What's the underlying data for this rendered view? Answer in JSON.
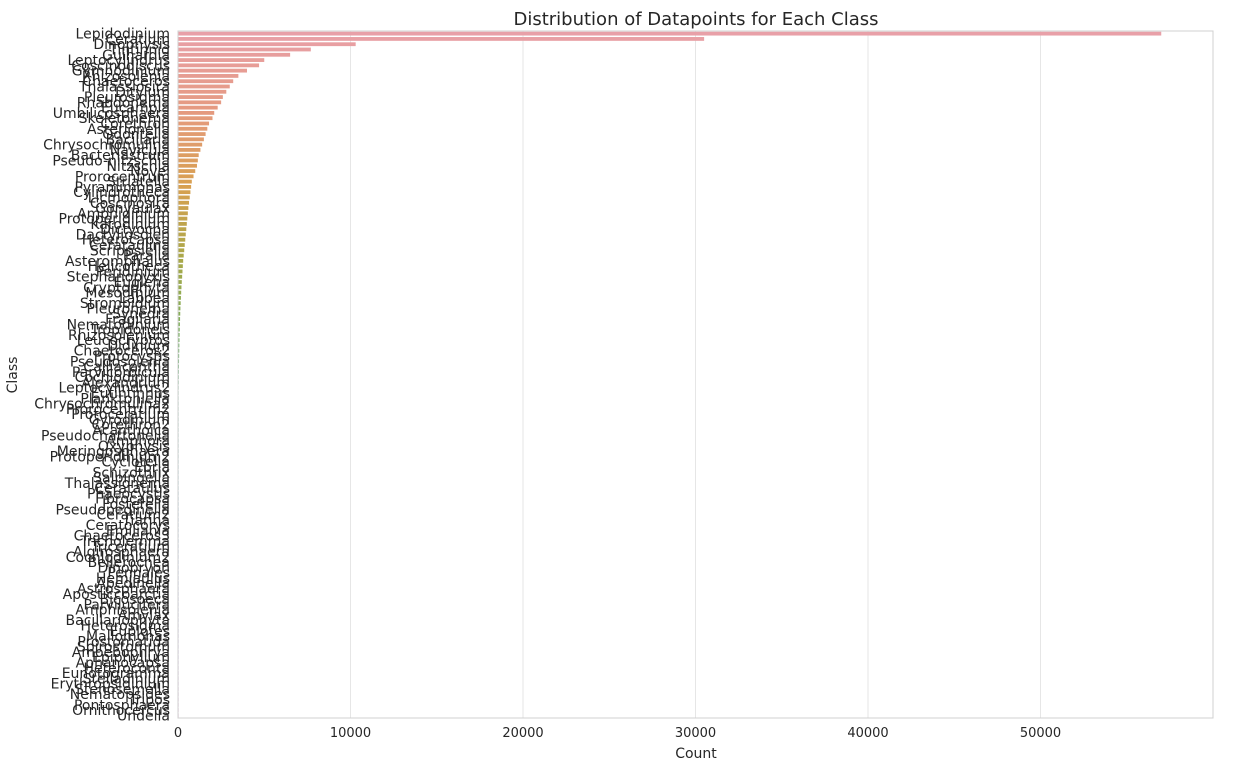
{
  "chart_data": {
    "type": "bar",
    "orientation": "horizontal",
    "title": "Distribution of Datapoints for Each Class",
    "xlabel": "Count",
    "ylabel": "Class",
    "xlim": [
      0,
      60000
    ],
    "x_ticks": [
      0,
      10000,
      20000,
      30000,
      40000,
      50000
    ],
    "x_tick_labels": [
      "0",
      "10000",
      "20000",
      "30000",
      "40000",
      "50000"
    ],
    "grid": "vertical",
    "categories": [
      "Lepidodinium",
      "Ceratium",
      "Dinophysis",
      "Tintinnid",
      "Guinardia",
      "Leptocylindrus",
      "Coscinodiscus",
      "Gymnodinium",
      "Rhizosolenia",
      "Chaetoceros",
      "Thalassiosira",
      "Ditylum",
      "Pleurosigma",
      "Rhabdonema",
      "Eucampia",
      "Umbilicosphaera",
      "Skeletonema",
      "Corethron",
      "Asterionella",
      "Odontella",
      "Bacillaria",
      "Chrysochromulina",
      "Navicula",
      "Bacteriastrum",
      "Pseudo-nitzschia",
      "Nitzschia",
      "Novel",
      "Prorocentrum",
      "Striatella",
      "Pyramimonas",
      "Cylindrotheca",
      "Licmophora",
      "Coscinosira",
      "Gonyaulax",
      "Amphidinium",
      "Protoperidinium",
      "Katodinium",
      "Dictyocha",
      "Dactyliosolen",
      "Heterocapsa",
      "Cerataulina",
      "Scrippsiella",
      "Paralia",
      "Asteromphalus",
      "Helicotheca",
      "Peridinium",
      "Stephanopyxis",
      "Euglena",
      "Cryptophyta",
      "Mesodinium",
      "Laboea",
      "Strombidium",
      "Pleuronema",
      "Synedra",
      "Fragilaria",
      "Nematodinium",
      "Tropidoneis",
      "Rhizosolenium",
      "Leucocryptos",
      "Didinium",
      "Chaetoceros2",
      "Protocystis",
      "Pseudosolenia",
      "Calliacantha",
      "Parvicorbicula",
      "Cochlodinium",
      "Alexandrium",
      "Leptocylindrus2",
      "Eutintinnus",
      "Planktoniella",
      "Chrysochromulina2",
      "Prorocentrum2",
      "Protoceratium",
      "Gyrodinium",
      "Corethron2",
      "Acanthoica",
      "Pseudochattonella",
      "Amphora",
      "Oxyphysis",
      "Meringosphaera",
      "Protoperidinium2",
      "Cyclotella",
      "Ebria",
      "Schizothrix",
      "Salpingella",
      "Thalassionema",
      "Cerataulus",
      "Phaeocystis",
      "Fibrocapsa",
      "Fosterella",
      "Pseudopedinella",
      "Ceratium2",
      "Tiarina",
      "Ceratocorys",
      "Emiliania",
      "Chaetoceros3",
      "Tricholemma",
      "Triceratium",
      "Algirosphaera",
      "Cochlodinium2",
      "Bellerochea",
      "Dinobryon",
      "Pennales",
      "Hemiaulus",
      "Apedinella",
      "Astrosphaera",
      "Aposticcoarctia",
      "Bicosoeca",
      "Parvilucifera",
      "Amphisolenia",
      "Amylax",
      "Bacillariophyta",
      "Heterosigma",
      "Euplotes",
      "Mallomonas",
      "Prostomatida",
      "Spirostomum",
      "Amoebophrya",
      "Epiphyllum",
      "Aphanocapsa",
      "Heteroconta",
      "Eunotogramma",
      "Stelladinium",
      "Erythropsidinium",
      "Stenosemella",
      "Nematopsides",
      "Tripos",
      "Pontosphaera",
      "Ornithocercus",
      "Undella"
    ],
    "values": [
      57000,
      30500,
      10300,
      7700,
      6500,
      5000,
      4700,
      4000,
      3500,
      3200,
      3000,
      2800,
      2600,
      2500,
      2300,
      2100,
      2000,
      1800,
      1700,
      1600,
      1500,
      1400,
      1300,
      1200,
      1150,
      1100,
      1000,
      900,
      800,
      760,
      720,
      680,
      640,
      600,
      570,
      540,
      510,
      480,
      450,
      420,
      390,
      360,
      330,
      300,
      280,
      260,
      240,
      220,
      200,
      185,
      170,
      155,
      140,
      130,
      120,
      110,
      100,
      92,
      85,
      78,
      72,
      66,
      60,
      55,
      50,
      46,
      42,
      38,
      35,
      32,
      30,
      28,
      26,
      24,
      22,
      20,
      19,
      18,
      17,
      16,
      15,
      14,
      13,
      12,
      11,
      10,
      10,
      9,
      9,
      8,
      8,
      7,
      7,
      6,
      6,
      6,
      5,
      5,
      5,
      4,
      4,
      4,
      4,
      3,
      3,
      3,
      3,
      3,
      2,
      2,
      2,
      2,
      2,
      2,
      2,
      2,
      1,
      1,
      1,
      1,
      1,
      1,
      1,
      1,
      1,
      1,
      1,
      1,
      1,
      1
    ],
    "palette_stops": [
      "#e8a0a8",
      "#e59a80",
      "#d8a050",
      "#a8a848",
      "#78b060",
      "#60b090",
      "#60a8b8",
      "#8aa0d8",
      "#b098d8",
      "#d890c8"
    ]
  }
}
